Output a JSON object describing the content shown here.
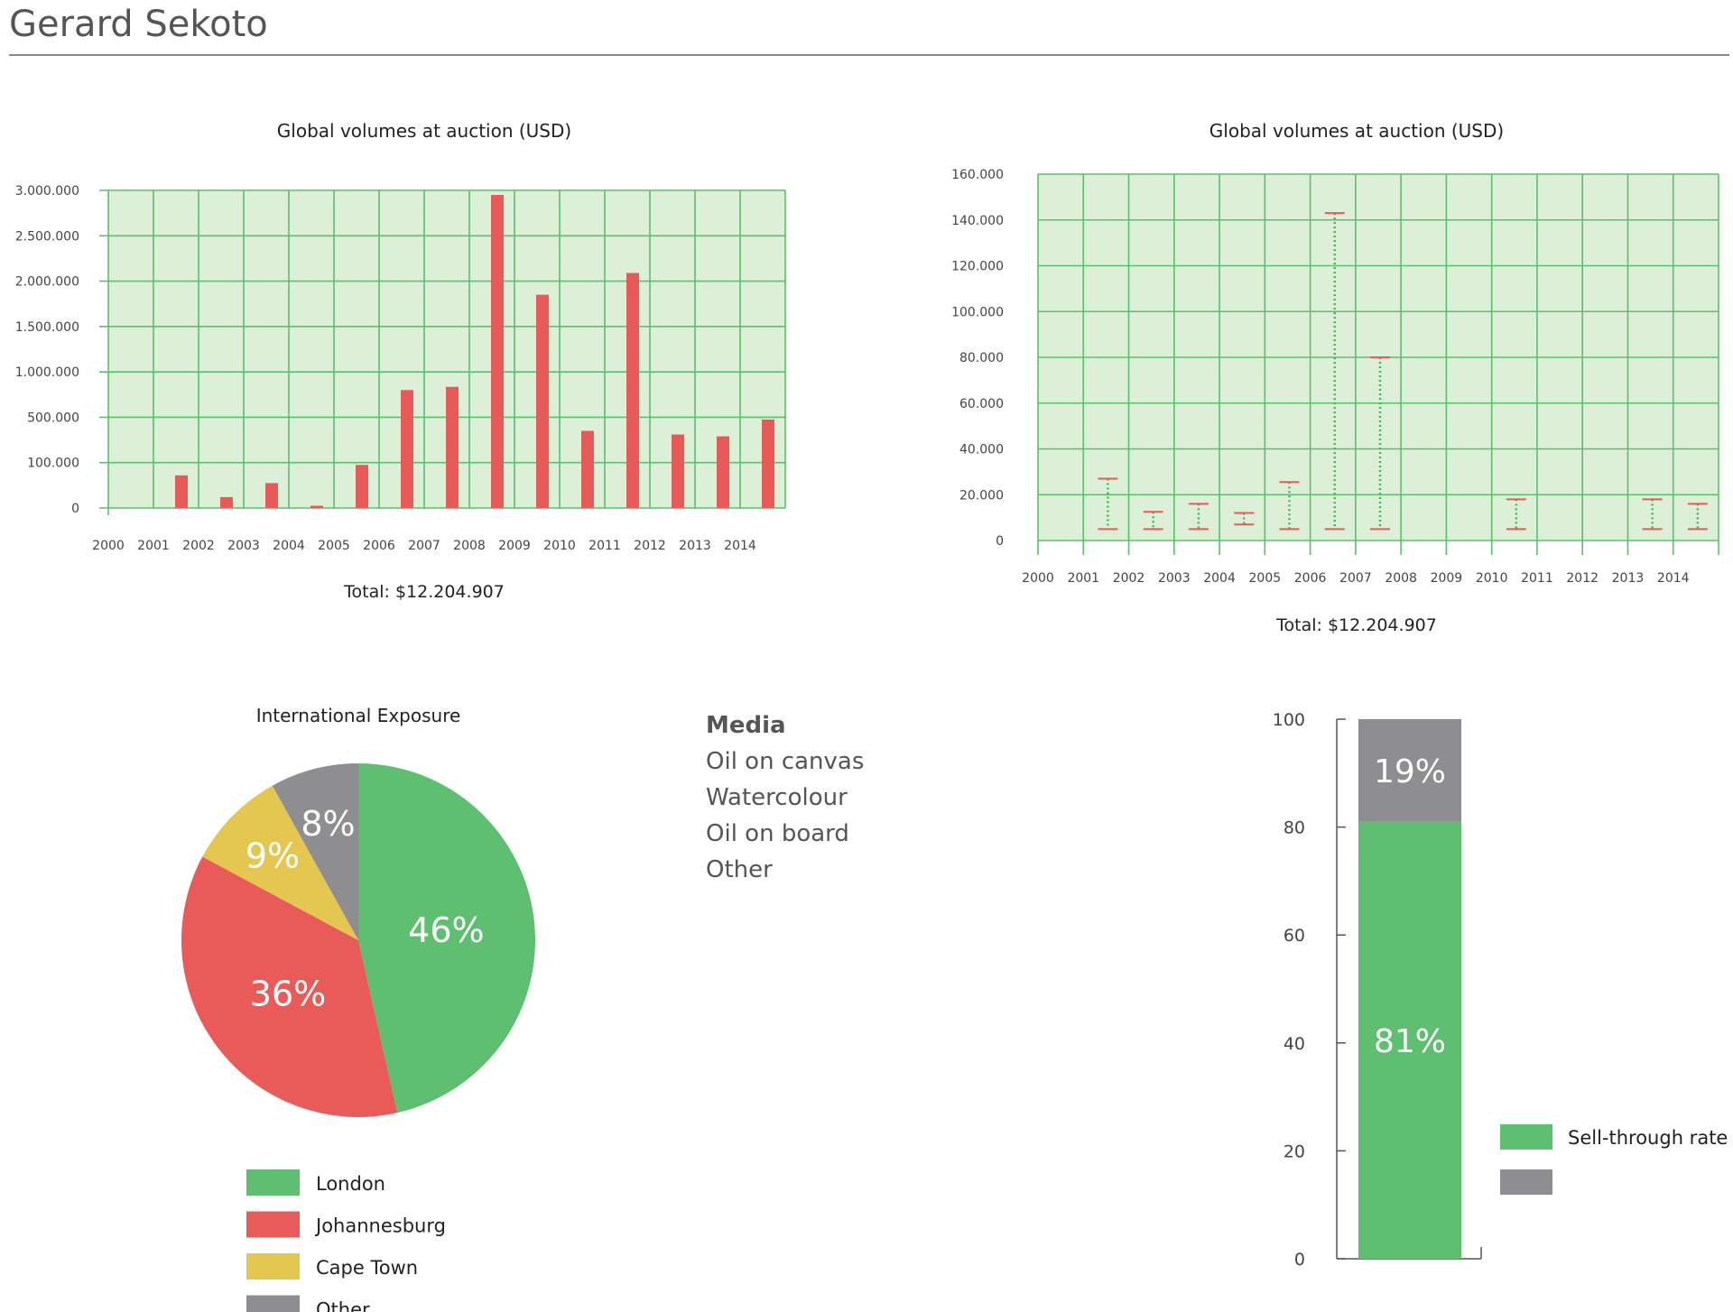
{
  "page": {
    "title": "Gerard Sekoto"
  },
  "media": {
    "title": "Media",
    "items": [
      "Oil on canvas",
      "Watercolour",
      "Oil on board",
      "Other"
    ]
  },
  "colors": {
    "grid_bg": "#dcf0d8",
    "grid_line": "#5cbf6c",
    "bar_red": "#e85a58",
    "green": "#5dbf6f",
    "red": "#e95b58",
    "yellow": "#e4c74f",
    "gray": "#8e8e90"
  },
  "chart_data": [
    {
      "id": "volume-bars",
      "type": "bar",
      "title": "Global volumes at auction (USD)",
      "total_label": "Total: $12.204.907",
      "categories": [
        "2000",
        "2001",
        "2002",
        "2003",
        "2004",
        "2005",
        "2006",
        "2007",
        "2008",
        "2009",
        "2010",
        "2011",
        "2012",
        "2013",
        "2014"
      ],
      "y_ticks": [
        {
          "label": "0",
          "value": 0
        },
        {
          "label": "100.000",
          "value": 1
        },
        {
          "label": "500.000",
          "value": 2
        },
        {
          "label": "1.000.000",
          "value": 3
        },
        {
          "label": "1.500.000",
          "value": 4
        },
        {
          "label": "2.000.000",
          "value": 5
        },
        {
          "label": "2.500.000",
          "value": 6
        },
        {
          "label": "3.000.000",
          "value": 7
        }
      ],
      "values": [
        null,
        0.72,
        0.24,
        0.55,
        0.05,
        0.95,
        2.6,
        2.67,
        6.9,
        4.7,
        1.7,
        5.18,
        1.62,
        1.58,
        1.95
      ],
      "note": "values expressed on the tick index scale (tick labels are non-linear)",
      "grid": true
    },
    {
      "id": "price-range",
      "type": "range",
      "title": "Global volumes at auction (USD)",
      "total_label": "Total: $12.204.907",
      "categories": [
        "2000",
        "2001",
        "2002",
        "2003",
        "2004",
        "2005",
        "2006",
        "2007",
        "2008",
        "2009",
        "2010",
        "2011",
        "2012",
        "2013",
        "2014"
      ],
      "y_ticks": [
        "0",
        "20.000",
        "40.000",
        "60.000",
        "80.000",
        "100.000",
        "120.000",
        "140.000",
        "160.000"
      ],
      "ylim": [
        0,
        160000
      ],
      "ranges": [
        {
          "year": "2001",
          "low": 5000,
          "high": 27000
        },
        {
          "year": "2002",
          "low": 5000,
          "high": 12500
        },
        {
          "year": "2003",
          "low": 5000,
          "high": 16000
        },
        {
          "year": "2004",
          "low": 7000,
          "high": 12000
        },
        {
          "year": "2005",
          "low": 5000,
          "high": 25500
        },
        {
          "year": "2006",
          "low": 5000,
          "high": 143000
        },
        {
          "year": "2007",
          "low": 5000,
          "high": 80000
        },
        {
          "year": "2010",
          "low": 5000,
          "high": 18000
        },
        {
          "year": "2013",
          "low": 5000,
          "high": 18000
        },
        {
          "year": "2014",
          "low": 5000,
          "high": 16000
        }
      ],
      "grid": true
    },
    {
      "id": "international-exposure",
      "type": "pie",
      "title": "International Exposure",
      "slices": [
        {
          "name": "London",
          "value": 46,
          "label": "46%",
          "color": "#5dbf6f"
        },
        {
          "name": "Johannesburg",
          "value": 36,
          "label": "36%",
          "color": "#e95b58"
        },
        {
          "name": "Cape Town",
          "value": 9,
          "label": "9%",
          "color": "#e4c74f"
        },
        {
          "name": "Other",
          "value": 8,
          "label": "8%",
          "color": "#8e8e90"
        }
      ],
      "legend_position": "bottom"
    },
    {
      "id": "sell-through",
      "type": "bar",
      "stacked": true,
      "y_ticks": [
        "0",
        "20",
        "40",
        "60",
        "80",
        "100"
      ],
      "ylim": [
        0,
        100
      ],
      "series": [
        {
          "name": "Sell-through rate",
          "value": 81,
          "label": "81%",
          "color": "#5dbf6f"
        },
        {
          "value": 19,
          "label": "19%",
          "color": "#8e8e90"
        }
      ],
      "legend_position": "right"
    }
  ]
}
